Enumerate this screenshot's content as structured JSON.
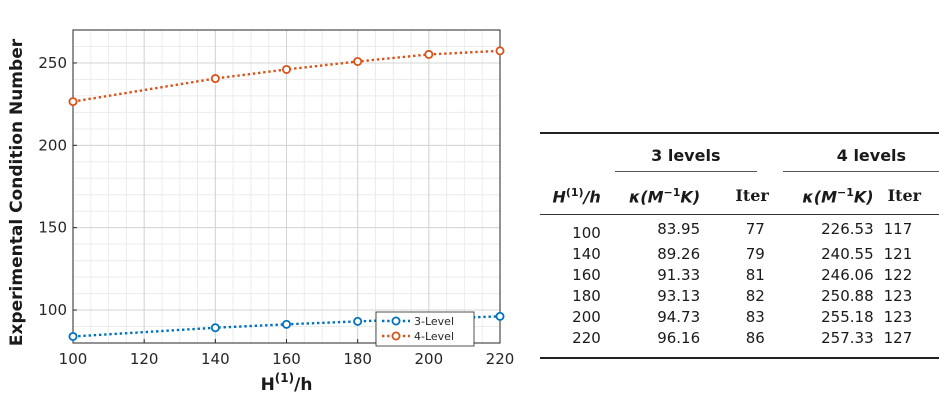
{
  "chart_data": {
    "type": "line",
    "xlabel_base": "H",
    "xlabel_sup": "(1)",
    "xlabel_tail": "/h",
    "ylabel": "Experimental Condition Number",
    "x": [
      100,
      140,
      160,
      180,
      200,
      220
    ],
    "xlim": [
      100,
      220
    ],
    "ylim": [
      80,
      270
    ],
    "xticks": [
      100,
      120,
      140,
      160,
      180,
      200,
      220
    ],
    "yticks": [
      100,
      150,
      200,
      250
    ],
    "grid": true,
    "legend_position": "bottom-right",
    "series": [
      {
        "name": "3-Level",
        "color": "#0072BD",
        "values": [
          83.95,
          89.26,
          91.33,
          93.13,
          94.73,
          96.16
        ]
      },
      {
        "name": "4-Level",
        "color": "#D95319",
        "values": [
          226.53,
          240.55,
          246.06,
          250.88,
          255.18,
          257.33
        ]
      }
    ]
  },
  "table": {
    "group_headers": [
      "3 levels",
      "4 levels"
    ],
    "col_h": {
      "base": "H",
      "sup": "(1)",
      "tail": "/h"
    },
    "col_kappa": {
      "pre": "κ(M",
      "sup": "−1",
      "post": "K)"
    },
    "col_iter": "Iter",
    "rows": [
      [
        "100",
        "83.95",
        "77",
        "226.53",
        "117"
      ],
      [
        "140",
        "89.26",
        "79",
        "240.55",
        "121"
      ],
      [
        "160",
        "91.33",
        "81",
        "246.06",
        "122"
      ],
      [
        "180",
        "93.13",
        "82",
        "250.88",
        "123"
      ],
      [
        "200",
        "94.73",
        "83",
        "255.18",
        "123"
      ],
      [
        "220",
        "96.16",
        "86",
        "257.33",
        "127"
      ]
    ]
  }
}
